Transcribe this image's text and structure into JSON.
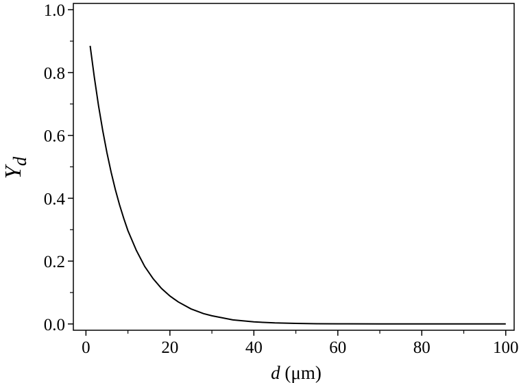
{
  "chart_data": {
    "type": "line",
    "title": "",
    "xlabel": {
      "symbol": "d",
      "unit": " (μm)"
    },
    "ylabel": {
      "symbol": "Y",
      "subscript": "d"
    },
    "xlim": [
      -3,
      102
    ],
    "ylim": [
      -0.02,
      1.02
    ],
    "xticks": [
      0,
      20,
      40,
      60,
      80,
      100
    ],
    "xtick_labels": [
      "0",
      "20",
      "40",
      "60",
      "80",
      "100"
    ],
    "yticks": [
      0.0,
      0.2,
      0.4,
      0.6,
      0.8,
      1.0
    ],
    "ytick_labels": [
      "0.0",
      "0.2",
      "0.4",
      "0.6",
      "0.8",
      "1.0"
    ],
    "grid": false,
    "series": [
      {
        "x": [
          1,
          2,
          3,
          4,
          5,
          6,
          7,
          8,
          9,
          10,
          12,
          14,
          16,
          18,
          20,
          22,
          25,
          28,
          30,
          35,
          40,
          45,
          50,
          55,
          60,
          70,
          80,
          90,
          100
        ],
        "y": [
          0.885,
          0.785,
          0.695,
          0.615,
          0.545,
          0.483,
          0.428,
          0.379,
          0.336,
          0.297,
          0.234,
          0.183,
          0.144,
          0.113,
          0.089,
          0.07,
          0.048,
          0.033,
          0.026,
          0.013,
          0.0066,
          0.0033,
          0.0017,
          0.0008,
          0.0004,
          0.0001,
          3e-05,
          1e-05,
          0.0
        ]
      }
    ]
  }
}
